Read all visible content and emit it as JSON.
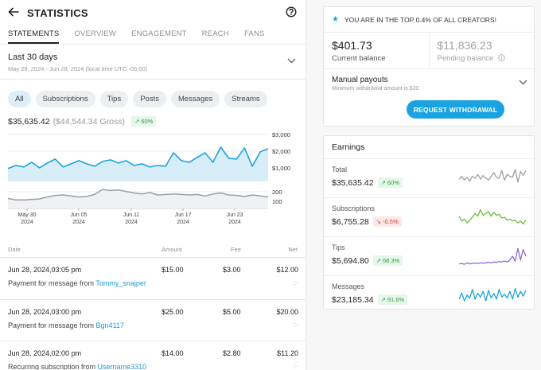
{
  "header": {
    "title": "STATISTICS"
  },
  "tabs": [
    "STATEMENTS",
    "OVERVIEW",
    "ENGAGEMENT",
    "REACH",
    "FANS"
  ],
  "period": {
    "title": "Last 30 days",
    "subtitle": "May 29, 2024 - Jun 28, 2024 (local time UTC -05:00)"
  },
  "chips": [
    "All",
    "Subscriptions",
    "Tips",
    "Posts",
    "Messages",
    "Streams"
  ],
  "summary": {
    "net": "$35,635.42",
    "gross": "($44,544.34 Gross)",
    "change": "60%"
  },
  "chart_data": {
    "type": "line",
    "x_ticks": [
      {
        "d": "May 30",
        "y": "2024"
      },
      {
        "d": "Jun 05",
        "y": "2024"
      },
      {
        "d": "Jun 11",
        "y": "2024"
      },
      {
        "d": "Jun 17",
        "y": "2024"
      },
      {
        "d": "Jun 23",
        "y": "2024"
      }
    ],
    "top_y_ticks": [
      "$3,000",
      "$2,000",
      "$1,000"
    ],
    "bottom_y_ticks": [
      "200",
      "100"
    ],
    "series": [
      {
        "values": [
          900,
          1100,
          1000,
          1300,
          950,
          1250,
          1500,
          1000,
          1200,
          1400,
          1200,
          1050,
          1350,
          1450,
          1250,
          1400,
          1100,
          1200,
          1000,
          1100,
          1050,
          1900,
          1400,
          1300,
          1600,
          1900,
          1300,
          2250,
          1550,
          1500,
          2200,
          1050,
          1950,
          2150
        ],
        "ylim": [
          0,
          3000
        ],
        "color": "#1aa3e0"
      },
      {
        "values": [
          85,
          70,
          70,
          75,
          80,
          100,
          115,
          120,
          110,
          100,
          105,
          125,
          175,
          165,
          170,
          155,
          140,
          130,
          145,
          120,
          125,
          130,
          125,
          120,
          125,
          110,
          130,
          140,
          120,
          115,
          105,
          120,
          110,
          100
        ],
        "ylim": [
          0,
          300
        ],
        "color": "#9aa0a6"
      }
    ]
  },
  "table": {
    "headers": [
      "Date",
      "Amount",
      "Fee",
      "Net"
    ],
    "rows": [
      {
        "date": "Jun 28, 2024,03:05 pm",
        "amount": "$15.00",
        "fee": "$3.00",
        "net": "$12.00",
        "desc": "Payment for message from ",
        "user": "Tommy_snajper"
      },
      {
        "date": "Jun 28, 2024,03:00 pm",
        "amount": "$25.00",
        "fee": "$5.00",
        "net": "$20.00",
        "desc": "Payment for message from ",
        "user": "Bgn4117"
      },
      {
        "date": "Jun 28, 2024,02:00 pm",
        "amount": "$14.00",
        "fee": "$2.80",
        "net": "$11.20",
        "desc": "Recurring subscription from ",
        "user": "Username3310"
      }
    ]
  },
  "creator": {
    "rank_text": "YOU ARE IN THE TOP 0.4% OF ALL CREATORS!",
    "current_balance": "$401.73",
    "current_label": "Current balance",
    "pending_balance": "$11,836.23",
    "pending_label": "Pending balance",
    "payout_title": "Manual payouts",
    "payout_sub": "Minimum withdrawal amount is $20",
    "request_button": "REQUEST WITHDRAWAL"
  },
  "earnings": {
    "title": "Earnings",
    "items": [
      {
        "name": "Total",
        "value": "$35,635.42",
        "change": "60%",
        "dir": "up",
        "color": "#9aa0a6",
        "spark": [
          0.45,
          0.6,
          0.4,
          0.55,
          0.35,
          0.6,
          0.5,
          0.7,
          0.45,
          0.65,
          0.5,
          0.4,
          0.6,
          0.8,
          0.55,
          0.5,
          0.9,
          0.4,
          0.7,
          0.6,
          0.55,
          0.95,
          0.3,
          0.85,
          0.65,
          0.9
        ]
      },
      {
        "name": "Subscriptions",
        "value": "$6,755.28",
        "change": "-0.5%",
        "dir": "down",
        "color": "#6bbf3a",
        "spark": [
          0.55,
          0.3,
          0.4,
          0.2,
          0.35,
          0.5,
          0.7,
          0.55,
          0.9,
          0.6,
          0.7,
          0.8,
          0.55,
          0.75,
          0.6,
          0.65,
          0.45,
          0.5,
          0.35,
          0.4,
          0.3,
          0.35,
          0.2,
          0.3,
          0.15,
          0.35
        ]
      },
      {
        "name": "Tips",
        "value": "$5,694.80",
        "change": "68.3%",
        "dir": "up",
        "color": "#8e6bd8",
        "spark": [
          0.1,
          0.12,
          0.08,
          0.15,
          0.1,
          0.12,
          0.14,
          0.12,
          0.15,
          0.13,
          0.16,
          0.18,
          0.15,
          0.2,
          0.18,
          0.22,
          0.2,
          0.25,
          0.2,
          0.3,
          0.5,
          0.25,
          0.9,
          0.3,
          0.85,
          0.5
        ]
      },
      {
        "name": "Messages",
        "value": "$23,185.34",
        "change": "91.6%",
        "dir": "up",
        "color": "#1aa3e0",
        "spark": [
          0.3,
          0.6,
          0.2,
          0.5,
          0.35,
          0.8,
          0.3,
          0.6,
          0.4,
          0.7,
          0.2,
          0.75,
          0.35,
          0.6,
          0.3,
          0.8,
          0.4,
          0.55,
          0.35,
          0.7,
          0.3,
          0.85,
          0.4,
          0.7,
          0.45,
          0.75
        ]
      }
    ]
  }
}
